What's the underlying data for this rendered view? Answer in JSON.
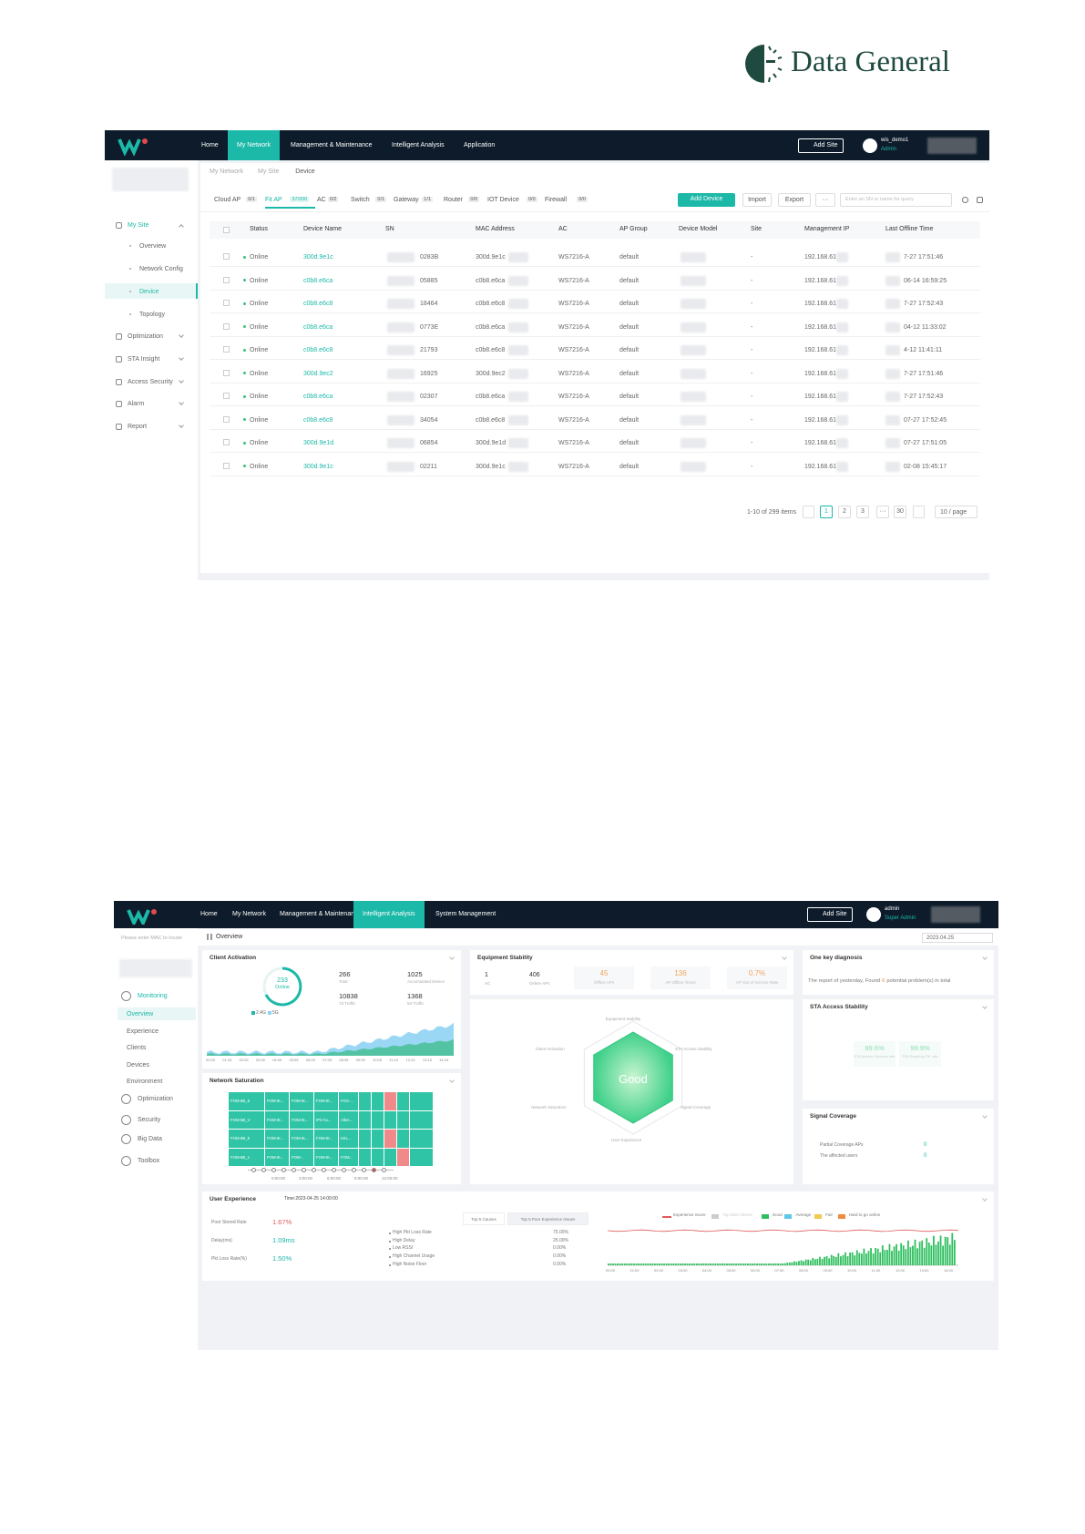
{
  "logo": {
    "text": "Data General"
  },
  "screen1": {
    "nav": [
      "Home",
      "My Network",
      "Management & Maintenance",
      "Intelligent Analysis",
      "Application"
    ],
    "add_site": "Add Site",
    "user": "wis_demo1",
    "role": "Admin",
    "sidebar": [
      "My Site",
      "Overview",
      "Network Config",
      "Device",
      "Topology",
      "Optimization",
      "STA Insight",
      "Access Security",
      "Alarm",
      "Report"
    ],
    "breadcrumb": [
      "My Network",
      "My Site",
      "Device"
    ],
    "tabs": [
      {
        "label": "Cloud AP",
        "count": "0/1"
      },
      {
        "label": "Fit AP",
        "count": "37/200"
      },
      {
        "label": "AC",
        "count": "0/2"
      },
      {
        "label": "Switch",
        "count": "0/1"
      },
      {
        "label": "Gateway",
        "count": "1/1"
      },
      {
        "label": "Router",
        "count": "0/0"
      },
      {
        "label": "IOT Device",
        "count": "0/0"
      },
      {
        "label": "Firewall",
        "count": "0/0"
      }
    ],
    "buttons": [
      "Add Device",
      "Import",
      "Export",
      "···"
    ],
    "search": "Enter an SN or name for query",
    "columns": [
      "Status",
      "Device Name",
      "SN",
      "MAC Address",
      "AC",
      "AP Group",
      "Device Model",
      "Site",
      "Management IP",
      "Last Offline Time"
    ],
    "rows": [
      [
        "Online",
        "300d.9e1c",
        "0283B",
        "300d.9e1c",
        "WS7216-A",
        "default",
        "-",
        "192.168.61",
        "7-27 17:51:46"
      ],
      [
        "Online",
        "c0b8.e6ca",
        "05885",
        "c0b8.e6ca",
        "WS7216-A",
        "default",
        "-",
        "192.168.61",
        "06-14 16:59:25"
      ],
      [
        "Online",
        "c0b8.e6c8",
        "18464",
        "c0b8.e6c8",
        "WS7216-A",
        "default",
        "-",
        "192.168.61",
        "7-27 17:52:43"
      ],
      [
        "Online",
        "c0b8.e6ca",
        "0773E",
        "c0b8.e6ca",
        "WS7216-A",
        "default",
        "-",
        "192.168.61",
        "04-12 11:33:02"
      ],
      [
        "Online",
        "c0b8.e6c8",
        "21793",
        "c0b8.e6c8",
        "WS7216-A",
        "default",
        "-",
        "192.168.61",
        "4-12 11:41:11"
      ],
      [
        "Online",
        "300d.9ec2",
        "16925",
        "300d.9ec2",
        "WS7216-A",
        "default",
        "-",
        "192.168.61",
        "7-27 17:51:46"
      ],
      [
        "Online",
        "c0b8.e6ca",
        "02307",
        "c0b8.e6ca",
        "WS7216-A",
        "default",
        "-",
        "192.168.61",
        "7-27 17:52:43"
      ],
      [
        "Online",
        "c0b8.e6c8",
        "34054",
        "c0b8.e6c8",
        "WS7216-A",
        "default",
        "-",
        "192.168.61",
        "07-27 17:52:45"
      ],
      [
        "Online",
        "300d.9e1d",
        "06854",
        "300d.9e1d",
        "WS7216-A",
        "default",
        "-",
        "192.168.61",
        "07-27 17:51:05"
      ],
      [
        "Online",
        "300d.9e1c",
        "02211",
        "300d.9e1c",
        "WS7216-A",
        "default",
        "-",
        "192.168.61",
        "02-08 15:45:17"
      ]
    ],
    "pagination": {
      "summary": "1-10 of 299 items",
      "pages": [
        "1",
        "2",
        "3",
        "···",
        "30"
      ],
      "size": "10 / page"
    }
  },
  "screen2": {
    "nav": [
      "Home",
      "My Network",
      "Management & Maintenance",
      "Intelligent Analysis",
      "System Management"
    ],
    "add_site": "Add Site",
    "user": "admin",
    "role": "Super Admin",
    "search": "Please enter MAC to locate",
    "sidebar": [
      "Monitoring",
      "Overview",
      "Experience",
      "Clients",
      "Devices",
      "Environment",
      "Optimization",
      "Security",
      "Big Data",
      "Toolbox"
    ],
    "header": "Overview",
    "date": "2023.04.25",
    "client_activation": {
      "title": "Client Activation",
      "online": 233,
      "online_label": "Online",
      "legend": [
        "2.4G",
        "5G"
      ],
      "stats": [
        {
          "value": 266,
          "label": "Total"
        },
        {
          "value": 1025,
          "label": "Accumulated Device"
        },
        {
          "value": 10838,
          "label": "7d Traffic"
        },
        {
          "value": 1368,
          "label": "5d Traffic"
        }
      ],
      "times": [
        "00:00",
        "01:25",
        "02:05",
        "03:05",
        "04:05",
        "05:05",
        "06:05",
        "07:05",
        "08:05",
        "09:05",
        "10:05",
        "11:10",
        "12:10",
        "13:15",
        "14:15"
      ]
    },
    "equipment": {
      "title": "Equipment Stability",
      "counts": [
        {
          "value": 1,
          "label": "AC"
        },
        {
          "value": 406,
          "label": "Online APs"
        }
      ],
      "kpis": [
        {
          "value": "45",
          "label": "Offline APs"
        },
        {
          "value": "136",
          "label": "AP Offline Times"
        },
        {
          "value": "0.7%",
          "label": "AP Out of Service Rate"
        }
      ]
    },
    "radar": {
      "center": "Good",
      "axes": [
        "Equipment Stability",
        "STA Access Stability",
        "Signal Coverage",
        "User Experience",
        "Network Saturation",
        "Client Activation"
      ]
    },
    "diagnosis": {
      "title": "One key diagnosis",
      "prefix": "The report of yesterday, Found",
      "count": 6,
      "suffix": "potential problem(s) in total"
    },
    "sta": {
      "title": "STA Access Stability",
      "kpis": [
        {
          "value": "99.6%",
          "label": "STA Access Success rate"
        },
        {
          "value": "99.9%",
          "label": "STA Roaming OK rate"
        }
      ]
    },
    "signal": {
      "title": "Signal Coverage",
      "rows": [
        {
          "label": "Partial Coverage APs",
          "value": 0
        },
        {
          "label": "The affected users",
          "value": 0
        }
      ]
    },
    "saturation": {
      "title": "Network Saturation",
      "cells": [
        "FOM-8B_8",
        "FOM-8I...",
        "FOM-8I...",
        "FOM-8I...",
        "FOX-...",
        "FOM-8B_V",
        "FOM-8I...",
        "FOM-8I...",
        "IPS ho...",
        "Allen...",
        "FOM-8B_8",
        "FOM-8I...",
        "FOM-8I...",
        "FOM-8I...",
        "KEL...",
        "FOM-8B_1",
        "FOM-8I...",
        "FOM-...",
        "FOM-8I...",
        "FOM..."
      ],
      "hot_cells": [
        7,
        27,
        38
      ],
      "times": [
        "0:00:00",
        "3:00:00",
        "6:00:00",
        "9:00:00",
        "12:00:00"
      ]
    },
    "experience": {
      "title": "User Experience",
      "time": "Time:2023-04-25 14:00:00",
      "metrics": [
        {
          "label": "Poor Stored Rate",
          "value": "1.67%"
        },
        {
          "label": "Delay(ms)",
          "value": "1.09ms"
        },
        {
          "label": "Pkt Loss Rate(%)",
          "value": "1.50%"
        }
      ],
      "tabs": [
        "Top 5 Causes",
        "Top 5 Poor Experience Issues"
      ],
      "causes": [
        {
          "label": "High Pkt Loss Rate",
          "value": "75.00%"
        },
        {
          "label": "High Delay",
          "value": "25.00%"
        },
        {
          "label": "Low RSSI",
          "value": "0.00%"
        },
        {
          "label": "High Channel Usage",
          "value": "0.00%"
        },
        {
          "label": "High Noise Floor",
          "value": "0.00%"
        }
      ],
      "legend": [
        {
          "label": "Experience Score",
          "color": "#e05a5a"
        },
        {
          "label": "Top Blue Clients",
          "color": "#cccccc"
        },
        {
          "label": "Good",
          "color": "#2fbf5f"
        },
        {
          "label": "Average",
          "color": "#5bc8e8"
        },
        {
          "label": "Fair",
          "color": "#f2c94c"
        },
        {
          "label": "Hard to go online",
          "color": "#f08a3c"
        }
      ],
      "times": [
        "00:00",
        "01:00",
        "02:00",
        "03:00",
        "04:00",
        "05:00",
        "06:00",
        "07:00",
        "08:00",
        "09:00",
        "10:00",
        "11:00",
        "12:00",
        "13:00",
        "14:00"
      ]
    }
  }
}
